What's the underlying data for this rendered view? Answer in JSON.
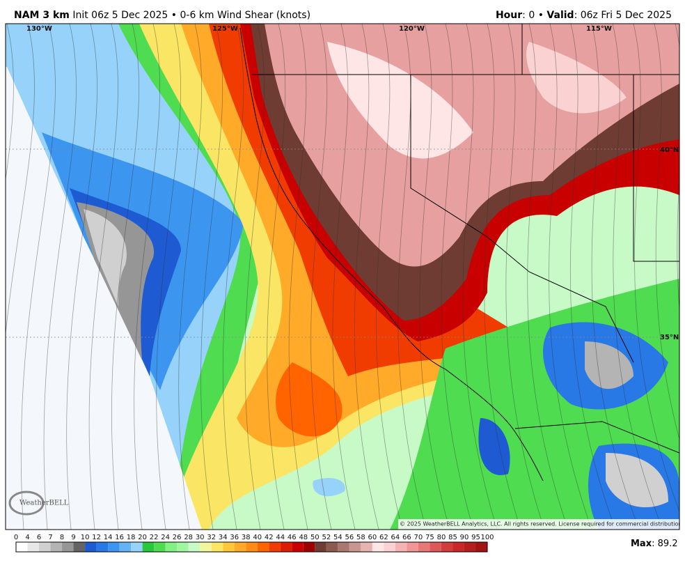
{
  "header": {
    "model": "NAM 3 km",
    "init": "Init 06z 5 Dec 2025",
    "separator": "•",
    "field": "0-6 km Wind Shear (knots)",
    "hour_label": "Hour",
    "hour_value": ": 0 •",
    "valid_label": "Valid",
    "valid_value": ": 06z Fri 5 Dec 2025"
  },
  "map": {
    "lon_labels": [
      "130°W",
      "125°W",
      "120°W",
      "115°W"
    ],
    "lat_labels": [
      "40°N",
      "35°N"
    ],
    "logo": "WeatherBELL",
    "copyright": "© 2025 WeatherBELL Analytics, LLC. All rights reserved. License required for commercial distribution."
  },
  "colorbar": {
    "ticks": [
      0,
      4,
      6,
      7,
      8,
      9,
      10,
      12,
      14,
      16,
      18,
      20,
      22,
      24,
      26,
      28,
      30,
      32,
      34,
      36,
      38,
      40,
      42,
      44,
      46,
      48,
      50,
      52,
      54,
      56,
      58,
      60,
      62,
      64,
      66,
      70,
      75,
      80,
      85,
      90,
      95,
      100
    ],
    "colors": [
      "#ffffff",
      "#e8e8e8",
      "#d0d0d0",
      "#b4b4b4",
      "#969696",
      "#646464",
      "#1e5ad2",
      "#2878e6",
      "#3c96f0",
      "#64b4f5",
      "#96d2fa",
      "#28c83c",
      "#50dc50",
      "#82f082",
      "#a0f5a0",
      "#c8fac8",
      "#f0f5a0",
      "#fae664",
      "#ffc83c",
      "#ffaa28",
      "#ff8c14",
      "#ff6400",
      "#f03c00",
      "#dc1e00",
      "#c80000",
      "#a00000",
      "#6e3c32",
      "#8c5a50",
      "#aa7870",
      "#c89690",
      "#e6b4b0",
      "#ffe6e6",
      "#fad2d2",
      "#f5b4b4",
      "#f09696",
      "#e67878",
      "#dc5a5a",
      "#d23c3c",
      "#c82828",
      "#b41e1e",
      "#a01414"
    ]
  },
  "max": {
    "label": "Max",
    "separator": ":",
    "value": 89.2
  }
}
